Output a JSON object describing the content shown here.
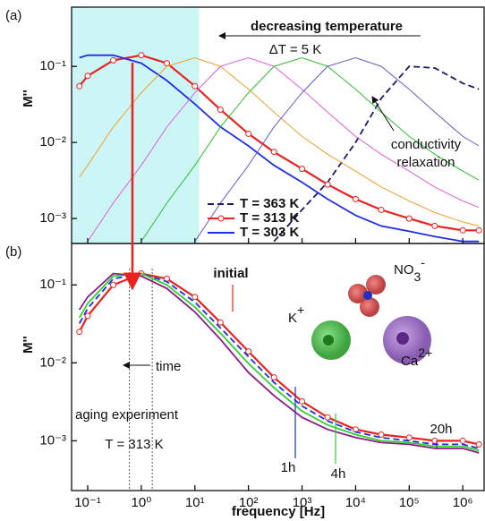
{
  "chart_data": [
    {
      "type": "line",
      "label": "(a)",
      "ylabel": "M''",
      "log_x": true,
      "log_y": true,
      "x": [
        0.07,
        0.1,
        0.3,
        1,
        3,
        10,
        30,
        100,
        300,
        1000,
        3000,
        10000,
        30000,
        100000,
        300000,
        1000000,
        2000000
      ],
      "xlim": [
        0.05,
        2500000
      ],
      "ylim": [
        0.00047,
        0.6
      ],
      "yticks": [
        {
          "value": 0.001,
          "label": "10⁻³"
        },
        {
          "value": 0.01,
          "label": "10⁻²"
        },
        {
          "value": 0.1,
          "label": "10⁻¹"
        }
      ],
      "shaded_range": [
        0.05,
        12
      ],
      "series": [
        {
          "name": "T = 363 K",
          "color": "#1a1a6e",
          "style": "dashed",
          "values": [
            null,
            null,
            null,
            null,
            null,
            null,
            null,
            null,
            0.0005,
            0.0013,
            0.003,
            0.01,
            0.038,
            0.1,
            0.095,
            0.06,
            0.05
          ]
        },
        {
          "name": "T = 313 K",
          "color": "#e8231f",
          "style": "markers",
          "values": [
            0.055,
            0.075,
            0.12,
            0.14,
            0.11,
            0.055,
            0.027,
            0.013,
            0.0075,
            0.0045,
            0.0028,
            0.0018,
            0.0013,
            0.001,
            0.0008,
            0.0007,
            0.0007
          ]
        },
        {
          "name": "T = 303 K",
          "color": "#1f2fe0",
          "style": "solid",
          "values": [
            0.13,
            0.14,
            0.14,
            0.11,
            0.065,
            0.032,
            0.016,
            0.009,
            0.005,
            0.003,
            0.0018,
            0.0011,
            0.0008,
            0.00068,
            0.00058,
            0.0005,
            0.0005
          ]
        },
        {
          "color": "#f0a030",
          "style": "thin",
          "values": [
            0.0035,
            0.005,
            0.016,
            0.045,
            0.1,
            0.13,
            0.1,
            0.05,
            0.025,
            0.012,
            0.007,
            0.0042,
            0.0026,
            0.0017,
            0.0012,
            0.0009,
            0.0008
          ]
        },
        {
          "color": "#e060e0",
          "style": "thin",
          "values": [
            null,
            0.0005,
            0.0016,
            0.005,
            0.016,
            0.045,
            0.1,
            0.13,
            0.1,
            0.05,
            0.025,
            0.012,
            0.007,
            0.0042,
            0.0026,
            0.0017,
            0.0014
          ]
        },
        {
          "color": "#30c030",
          "style": "thin",
          "values": [
            null,
            null,
            null,
            0.0005,
            0.0016,
            0.005,
            0.016,
            0.045,
            0.1,
            0.13,
            0.1,
            0.05,
            0.025,
            0.012,
            0.007,
            0.0042,
            0.0032
          ]
        },
        {
          "color": "#6a5acd",
          "style": "thin",
          "values": [
            null,
            null,
            null,
            null,
            null,
            0.0005,
            0.0016,
            0.005,
            0.016,
            0.045,
            0.1,
            0.13,
            0.1,
            0.05,
            0.025,
            0.012,
            0.009
          ]
        }
      ],
      "annotations": [
        "decreasing temperature",
        "ΔT = 5 K",
        "conductivity",
        "relaxation"
      ]
    },
    {
      "type": "line",
      "label": "(b)",
      "ylabel": "M''",
      "xlabel": "frequency [Hz]",
      "log_x": true,
      "log_y": true,
      "x": [
        0.07,
        0.1,
        0.3,
        1,
        3,
        10,
        30,
        100,
        300,
        1000,
        3000,
        10000,
        30000,
        100000,
        300000,
        1000000,
        2000000
      ],
      "xlim": [
        0.05,
        2500000
      ],
      "ylim": [
        0.00023,
        0.34
      ],
      "xticks": [
        {
          "value": 0.1,
          "label": "10⁻¹"
        },
        {
          "value": 1,
          "label": "10⁰"
        },
        {
          "value": 10,
          "label": "10¹"
        },
        {
          "value": 100,
          "label": "10²"
        },
        {
          "value": 1000,
          "label": "10³"
        },
        {
          "value": 10000,
          "label": "10⁴"
        },
        {
          "value": 100000,
          "label": "10⁵"
        },
        {
          "value": 1000000,
          "label": "10⁶"
        }
      ],
      "yticks": [
        {
          "value": 0.001,
          "label": "10⁻³"
        },
        {
          "value": 0.01,
          "label": "10⁻²"
        },
        {
          "value": 0.1,
          "label": "10⁻¹"
        }
      ],
      "reference_lines": [
        0.6,
        1.6
      ],
      "series": [
        {
          "name": "initial",
          "color": "#e8231f",
          "style": "markers",
          "values": [
            0.025,
            0.04,
            0.1,
            0.14,
            0.12,
            0.07,
            0.033,
            0.014,
            0.0065,
            0.0032,
            0.002,
            0.0014,
            0.0012,
            0.0011,
            0.001,
            0.001,
            0.0009
          ]
        },
        {
          "name": "1h",
          "color": "#1f2fe0",
          "style": "dashed",
          "values": [
            0.032,
            0.05,
            0.12,
            0.14,
            0.11,
            0.06,
            0.028,
            0.012,
            0.0056,
            0.0028,
            0.0018,
            0.0013,
            0.0011,
            0.001,
            0.0009,
            0.0009,
            0.0008
          ]
        },
        {
          "name": "4h",
          "color": "#2ed02e",
          "style": "solid",
          "values": [
            0.038,
            0.058,
            0.13,
            0.14,
            0.1,
            0.052,
            0.024,
            0.0098,
            0.0048,
            0.0024,
            0.0016,
            0.0012,
            0.001,
            0.00095,
            0.00085,
            0.00085,
            0.00075
          ]
        },
        {
          "name": "20h",
          "color": "#8b1a8b",
          "style": "solid",
          "values": [
            0.048,
            0.07,
            0.14,
            0.13,
            0.09,
            0.045,
            0.02,
            0.0075,
            0.0038,
            0.002,
            0.0014,
            0.0011,
            0.00095,
            0.0009,
            0.0008,
            0.0008,
            0.0007
          ]
        }
      ],
      "annotations": [
        "time",
        "aging experiment",
        "T = 313 K"
      ],
      "ions": {
        "nitrate": [
          "NO",
          "3",
          "-"
        ],
        "potassium": [
          "K",
          "+"
        ],
        "calcium": [
          "Ca",
          "2+"
        ]
      }
    }
  ]
}
